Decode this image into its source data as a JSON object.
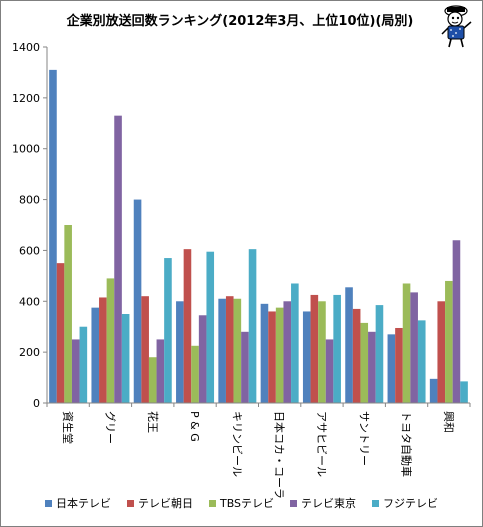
{
  "chart_data": {
    "type": "bar",
    "title": "企業別放送回数ランキング(2012年3月、上位10位)(局別)",
    "xlabel": "",
    "ylabel": "",
    "ylim": [
      0,
      1400
    ],
    "yticks": [
      "0",
      "200",
      "400",
      "600",
      "800",
      "1000",
      "1200",
      "1400"
    ],
    "grid": false,
    "legend_position": "bottom",
    "categories": [
      "資生堂",
      "グリー",
      "花王",
      "P & G",
      "キリンビール",
      "日本コカ・コーラ",
      "アサヒビール",
      "サントリー",
      "トヨタ自動車",
      "興和"
    ],
    "series": [
      {
        "name": "日本テレビ",
        "color": "#4f81bd",
        "values": [
          1310,
          375,
          800,
          400,
          410,
          390,
          360,
          455,
          270,
          95
        ]
      },
      {
        "name": "テレビ朝日",
        "color": "#c0504d",
        "values": [
          550,
          415,
          420,
          605,
          420,
          360,
          425,
          370,
          295,
          400
        ]
      },
      {
        "name": "TBSテレビ",
        "color": "#9bbb59",
        "values": [
          700,
          490,
          180,
          225,
          410,
          375,
          400,
          315,
          470,
          480
        ]
      },
      {
        "name": "テレビ東京",
        "color": "#8064a2",
        "values": [
          250,
          1130,
          250,
          345,
          280,
          400,
          250,
          280,
          435,
          640
        ]
      },
      {
        "name": "フジテレビ",
        "color": "#4bacc6",
        "values": [
          300,
          350,
          570,
          595,
          605,
          470,
          425,
          385,
          325,
          85
        ]
      }
    ]
  }
}
